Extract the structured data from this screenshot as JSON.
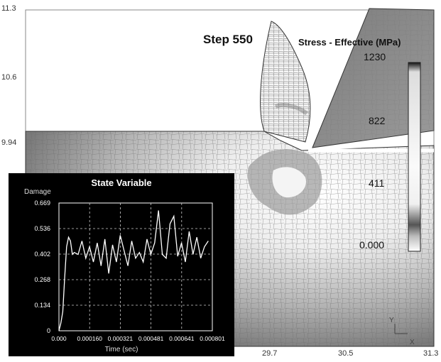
{
  "plot": {
    "step_label": "Step  550",
    "stress_title": "Stress - Effective (MPa)",
    "colorbar_labels": [
      "1230",
      "822",
      "411",
      "0.000"
    ],
    "x_ticks": [
      "29.7",
      "30.5",
      "31.3"
    ],
    "y_ticks": [
      "11.3",
      "10.6",
      "9.94"
    ],
    "triad": {
      "y": "Y",
      "x": "X"
    }
  },
  "chart_data": {
    "type": "line",
    "title": "State Variable",
    "xlabel": "Time (sec)",
    "ylabel": "Damage",
    "x_tick_labels": [
      "0.000",
      "0.000160",
      "0.000321",
      "0.000481",
      "0.000641",
      "0.000801"
    ],
    "y_tick_labels": [
      "0",
      "0.134",
      "0.268",
      "0.402",
      "0.536",
      "0.669"
    ],
    "xlim": [
      0,
      0.000801
    ],
    "ylim": [
      0,
      0.669
    ],
    "grid": true,
    "series": [
      {
        "x": [
          0.0,
          1e-05,
          2e-05,
          3e-05,
          4e-05,
          5e-05,
          6e-05,
          7e-05,
          8e-05,
          0.0001,
          0.00012,
          0.00014,
          0.00016,
          0.00018,
          0.0002,
          0.00022,
          0.00024,
          0.00026,
          0.00028,
          0.0003,
          0.00032,
          0.00034,
          0.00036,
          0.00038,
          0.0004,
          0.00042,
          0.00044,
          0.00046,
          0.00048,
          0.0005,
          0.00052,
          0.00054,
          0.00056,
          0.00058,
          0.0006,
          0.00062,
          0.00064,
          0.00066,
          0.00068,
          0.0007,
          0.00072,
          0.00074,
          0.00076,
          0.00078
        ],
        "y": [
          0.0,
          0.04,
          0.1,
          0.28,
          0.44,
          0.49,
          0.47,
          0.4,
          0.41,
          0.4,
          0.47,
          0.38,
          0.44,
          0.36,
          0.46,
          0.34,
          0.48,
          0.3,
          0.45,
          0.36,
          0.5,
          0.42,
          0.34,
          0.47,
          0.38,
          0.41,
          0.36,
          0.48,
          0.4,
          0.46,
          0.63,
          0.4,
          0.38,
          0.56,
          0.6,
          0.39,
          0.46,
          0.36,
          0.52,
          0.4,
          0.49,
          0.38,
          0.44,
          0.47
        ]
      }
    ]
  }
}
